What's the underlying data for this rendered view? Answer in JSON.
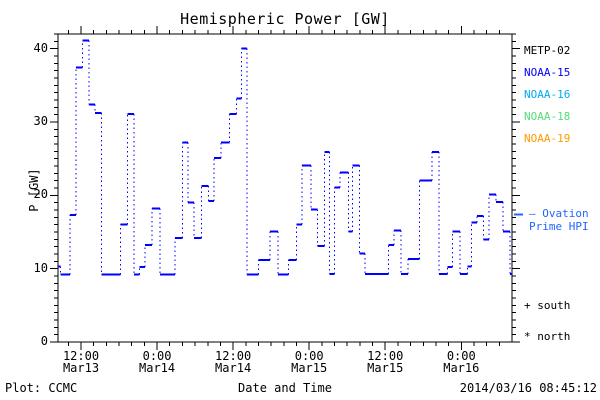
{
  "title": "Hemispheric Power [GW]",
  "legend": {
    "satellites": [
      {
        "label": "METP-02",
        "color": "#000000"
      },
      {
        "label": "NOAA-15",
        "color": "#0000ff"
      },
      {
        "label": "NOAA-16",
        "color": "#00aaee"
      },
      {
        "label": "NOAA-18",
        "color": "#55dd77"
      },
      {
        "label": "NOAA-19",
        "color": "#ff9900"
      }
    ],
    "ovation_line1": "— Ovation",
    "ovation_line2": "Prime HPI",
    "ovation_color": "#2266ff",
    "south_marker": "+ south",
    "north_marker": "* north"
  },
  "footer": {
    "credit": "Plot: CCMC",
    "timestamp": "2014/03/16 08:45:12"
  },
  "chart_data": {
    "type": "line",
    "step_mode": "post",
    "title": "Hemispheric Power [GW]",
    "xlabel": "Date and Time",
    "ylabel": "P [GW]",
    "ylim": [
      0,
      42
    ],
    "ytick_major": [
      0,
      10,
      20,
      30,
      40
    ],
    "ytick_minor_step": 1,
    "x_axis_hours_since_mar13_00": [
      8.37,
      80.0
    ],
    "x_minor_step_hours": 2,
    "xticks": [
      {
        "hour": 12,
        "time": "12:00",
        "date": "Mar13"
      },
      {
        "hour": 24,
        "time": "0:00",
        "date": "Mar14"
      },
      {
        "hour": 36,
        "time": "12:00",
        "date": "Mar14"
      },
      {
        "hour": 48,
        "time": "0:00",
        "date": "Mar15"
      },
      {
        "hour": 60,
        "time": "12:00",
        "date": "Mar15"
      },
      {
        "hour": 72,
        "time": "0:00",
        "date": "Mar16"
      }
    ],
    "grid": false,
    "legend_position": "right",
    "series": [
      {
        "name": "NOAA-15 Hemispheric Power",
        "color": "#0000ff",
        "steps_hour_gw": [
          [
            8.4,
            10.3
          ],
          [
            8.8,
            9.2
          ],
          [
            10.3,
            17.3
          ],
          [
            11.2,
            37.4
          ],
          [
            12.2,
            41.1
          ],
          [
            13.3,
            32.4
          ],
          [
            14.2,
            31.2
          ],
          [
            15.2,
            9.2
          ],
          [
            18.2,
            16.0
          ],
          [
            19.3,
            31.1
          ],
          [
            20.4,
            9.2
          ],
          [
            21.2,
            10.2
          ],
          [
            22.1,
            13.2
          ],
          [
            23.2,
            18.2
          ],
          [
            24.5,
            9.2
          ],
          [
            26.8,
            14.2
          ],
          [
            28.0,
            27.2
          ],
          [
            28.9,
            19.0
          ],
          [
            29.8,
            14.2
          ],
          [
            31.0,
            21.3
          ],
          [
            32.1,
            19.2
          ],
          [
            33.0,
            25.1
          ],
          [
            34.1,
            27.2
          ],
          [
            35.4,
            31.1
          ],
          [
            36.5,
            33.2
          ],
          [
            37.3,
            40.0
          ],
          [
            38.2,
            9.2
          ],
          [
            40.0,
            11.2
          ],
          [
            41.8,
            15.1
          ],
          [
            43.1,
            9.2
          ],
          [
            44.7,
            11.2
          ],
          [
            46.0,
            16.0
          ],
          [
            46.9,
            24.1
          ],
          [
            48.3,
            18.1
          ],
          [
            49.3,
            13.1
          ],
          [
            50.4,
            25.9
          ],
          [
            51.2,
            9.3
          ],
          [
            52.0,
            21.1
          ],
          [
            52.9,
            23.1
          ],
          [
            54.2,
            15.1
          ],
          [
            54.8,
            24.1
          ],
          [
            55.9,
            12.1
          ],
          [
            56.8,
            9.3
          ],
          [
            60.5,
            13.2
          ],
          [
            61.4,
            15.2
          ],
          [
            62.5,
            9.3
          ],
          [
            63.6,
            11.3
          ],
          [
            65.4,
            22.0
          ],
          [
            67.4,
            25.9
          ],
          [
            68.5,
            9.3
          ],
          [
            69.8,
            10.2
          ],
          [
            70.6,
            15.1
          ],
          [
            71.8,
            9.3
          ],
          [
            73.0,
            10.3
          ],
          [
            73.6,
            16.3
          ],
          [
            74.5,
            17.2
          ],
          [
            75.5,
            14.0
          ],
          [
            76.4,
            20.1
          ],
          [
            77.5,
            19.1
          ],
          [
            78.6,
            15.1
          ],
          [
            79.7,
            9.3
          ]
        ]
      }
    ],
    "ovation_marker": {
      "value_gw": 17.4,
      "color": "#2266ff"
    }
  }
}
